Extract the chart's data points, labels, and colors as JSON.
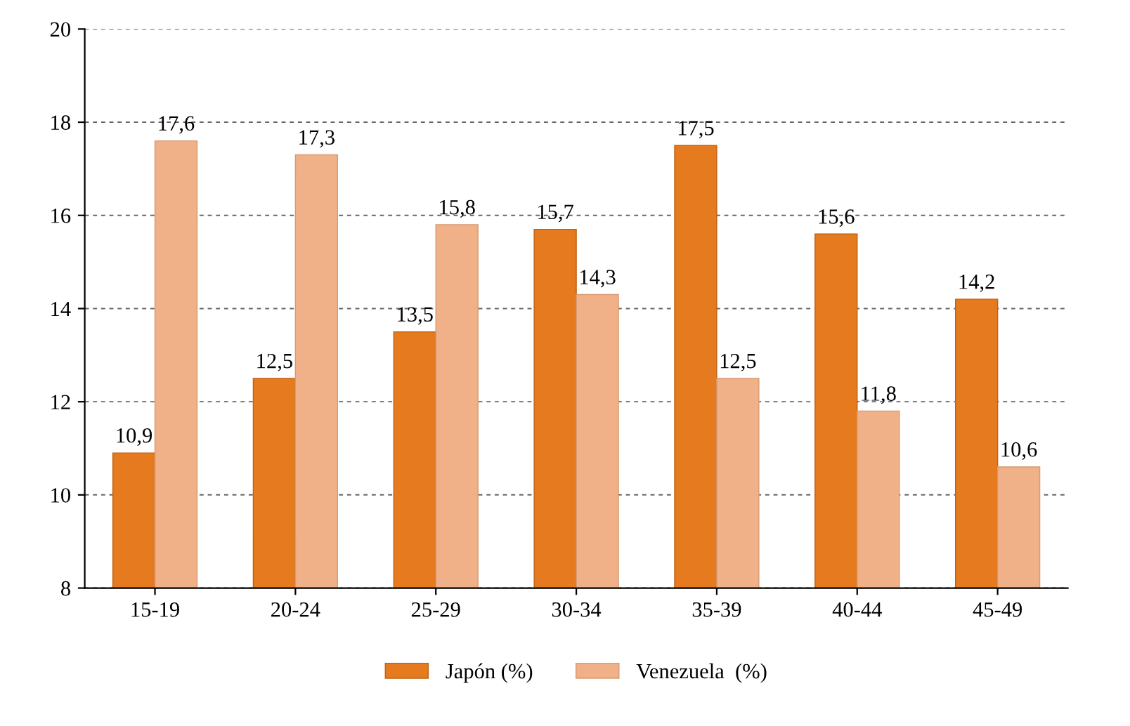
{
  "chart_data": {
    "type": "bar",
    "categories": [
      "15-19",
      "20-24",
      "25-29",
      "30-34",
      "35-39",
      "40-44",
      "45-49"
    ],
    "series": [
      {
        "name": "Japón (%)",
        "color": "#e57a1e",
        "values": [
          10.9,
          12.5,
          13.5,
          15.7,
          17.5,
          15.6,
          14.2
        ],
        "value_labels": [
          "10,9",
          "12,5",
          "13,5",
          "15,7",
          "17,5",
          "15,6",
          "14,2"
        ]
      },
      {
        "name": "Venezuela  (%)",
        "color": "#f0b088",
        "values": [
          17.6,
          17.3,
          15.8,
          14.3,
          12.5,
          11.8,
          10.6
        ],
        "value_labels": [
          "17,6",
          "17,3",
          "15,8",
          "14,3",
          "12,5",
          "11,8",
          "10,6"
        ]
      }
    ],
    "ylim": [
      8,
      20
    ],
    "yticks": [
      8,
      10,
      12,
      14,
      16,
      18,
      20
    ],
    "grid": "y",
    "legend": "bottom"
  }
}
